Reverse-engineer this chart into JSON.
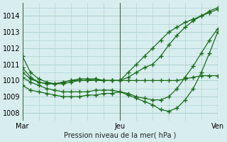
{
  "xlabel": "Pression niveau de la mer( hPa )",
  "bg_color": "#d8eeee",
  "grid_color": "#aacccc",
  "line_color": "#1a6b1a",
  "marker": "+",
  "ylim": [
    1007.5,
    1014.8
  ],
  "xlim": [
    0,
    48
  ],
  "yticks": [
    1008,
    1009,
    1010,
    1011,
    1012,
    1013,
    1014
  ],
  "xtick_pos": [
    0,
    24,
    48
  ],
  "xtick_labels": [
    "Mar",
    "Jeu",
    "Ven"
  ],
  "vlines": [
    0,
    24,
    48
  ],
  "series": [
    {
      "x": [
        0,
        2,
        4,
        6,
        8,
        10,
        12,
        14,
        16,
        18,
        20,
        22,
        24,
        26,
        28,
        30,
        32,
        34,
        36,
        38,
        40,
        42,
        44,
        46,
        48
      ],
      "y": [
        1011.5,
        1010.5,
        1010.1,
        1009.9,
        1009.8,
        1009.8,
        1009.9,
        1010.0,
        1010.0,
        1010.1,
        1010.0,
        1010.0,
        1010.0,
        1010.2,
        1010.5,
        1010.8,
        1011.0,
        1011.5,
        1012.2,
        1012.8,
        1013.3,
        1013.7,
        1014.0,
        1014.3,
        1014.5
      ]
    },
    {
      "x": [
        0,
        2,
        4,
        6,
        8,
        10,
        12,
        14,
        16,
        18,
        20,
        22,
        24,
        26,
        28,
        30,
        32,
        34,
        36,
        38,
        40,
        42,
        44,
        46,
        48
      ],
      "y": [
        1010.8,
        1010.2,
        1009.9,
        1009.8,
        1009.8,
        1009.9,
        1010.0,
        1010.1,
        1010.1,
        1010.1,
        1010.0,
        1010.0,
        1010.0,
        1010.5,
        1011.0,
        1011.5,
        1012.0,
        1012.5,
        1013.0,
        1013.3,
        1013.6,
        1013.8,
        1014.0,
        1014.2,
        1014.4
      ]
    },
    {
      "x": [
        0,
        2,
        4,
        6,
        8,
        10,
        12,
        14,
        16,
        18,
        20,
        22,
        24,
        26,
        28,
        30,
        32,
        34,
        36,
        38,
        40,
        42,
        44,
        46,
        48
      ],
      "y": [
        1010.5,
        1010.1,
        1009.9,
        1009.8,
        1009.8,
        1009.9,
        1010.0,
        1010.0,
        1010.0,
        1010.0,
        1010.0,
        1010.0,
        1010.0,
        1010.0,
        1010.0,
        1010.0,
        1010.0,
        1010.0,
        1010.0,
        1010.0,
        1010.1,
        1010.2,
        1010.3,
        1010.3,
        1010.3
      ]
    },
    {
      "x": [
        0,
        2,
        4,
        6,
        8,
        10,
        12,
        14,
        16,
        18,
        20,
        22,
        24,
        26,
        28,
        30,
        32,
        34,
        36,
        38,
        40,
        42,
        44,
        46,
        48
      ],
      "y": [
        1010.2,
        1009.9,
        1009.7,
        1009.5,
        1009.4,
        1009.3,
        1009.3,
        1009.3,
        1009.3,
        1009.4,
        1009.4,
        1009.4,
        1009.3,
        1009.2,
        1009.0,
        1008.9,
        1008.8,
        1008.8,
        1009.0,
        1009.5,
        1010.2,
        1010.9,
        1011.7,
        1012.5,
        1013.2
      ]
    },
    {
      "x": [
        0,
        2,
        4,
        6,
        8,
        10,
        12,
        14,
        16,
        18,
        20,
        22,
        24,
        26,
        28,
        30,
        32,
        34,
        36,
        38,
        40,
        42,
        44,
        46,
        48
      ],
      "y": [
        1009.7,
        1009.4,
        1009.3,
        1009.2,
        1009.1,
        1009.0,
        1009.0,
        1009.0,
        1009.1,
        1009.1,
        1009.2,
        1009.2,
        1009.3,
        1009.1,
        1008.9,
        1008.7,
        1008.5,
        1008.2,
        1008.1,
        1008.3,
        1008.8,
        1009.5,
        1010.5,
        1011.7,
        1013.0
      ]
    }
  ]
}
